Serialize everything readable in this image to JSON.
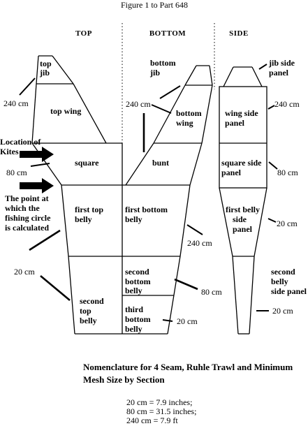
{
  "figure_title": "Figure 1 to Part 648",
  "columns": {
    "top": "TOP",
    "bottom": "BOTTOM",
    "side": "SIDE"
  },
  "top_panels": {
    "top_jib_1": "top",
    "top_jib_2": "jib",
    "top_wing": "top wing",
    "square": "square",
    "first_top_belly_1": "first top",
    "first_top_belly_2": "belly",
    "second_top_belly_1": "second",
    "second_top_belly_2": "top",
    "second_top_belly_3": "belly"
  },
  "bottom_panels": {
    "bottom_jib_1": "bottom",
    "bottom_jib_2": "jib",
    "bottom_wing_1": "bottom",
    "bottom_wing_2": "wing",
    "bunt": "bunt",
    "first_bottom_belly_1": "first bottom",
    "first_bottom_belly_2": "belly",
    "second_bottom_belly_1": "second",
    "second_bottom_belly_2": "bottom",
    "second_bottom_belly_3": "belly",
    "third_bottom_belly_1": "third",
    "third_bottom_belly_2": "bottom",
    "third_bottom_belly_3": "belly"
  },
  "side_panels": {
    "jib_side_panel_1": "jib side",
    "jib_side_panel_2": "panel",
    "wing_side_panel_1": "wing side",
    "wing_side_panel_2": "panel",
    "square_side_panel_1": "square side",
    "square_side_panel_2": "panel",
    "first_belly_side_panel_1": "first belly",
    "first_belly_side_panel_2": "side",
    "first_belly_side_panel_3": "panel",
    "second_belly_side_panel_1": "second",
    "second_belly_side_panel_2": "belly",
    "second_belly_side_panel_3": "side panel"
  },
  "annotations": {
    "location_of_kites_1": "Location of",
    "location_of_kites_2": "Kites",
    "fishing_circle_1": "The point at",
    "fishing_circle_2": "which the",
    "fishing_circle_3": "fishing circle",
    "fishing_circle_4": "is calculated"
  },
  "mesh_labels": {
    "top_240": "240 cm",
    "top_80": "80 cm",
    "top_20": "20 cm",
    "bottom_240_upper": "240 cm",
    "bottom_240_lower": "240 cm",
    "bottom_80": "80 cm",
    "bottom_20": "20 cm",
    "side_240": "240 cm",
    "side_80": "80 cm",
    "side_20_upper": "20 cm",
    "side_20_lower": "20 cm"
  },
  "caption": {
    "line1": "Nomenclature for 4 Seam, Ruhle Trawl and Minimum",
    "line2": "Mesh Size by Section"
  },
  "conversions": {
    "c20": "20 cm = 7.9 inches;",
    "c80": "80 cm = 31.5 inches;",
    "c240": "240 cm = 7.9 ft"
  }
}
